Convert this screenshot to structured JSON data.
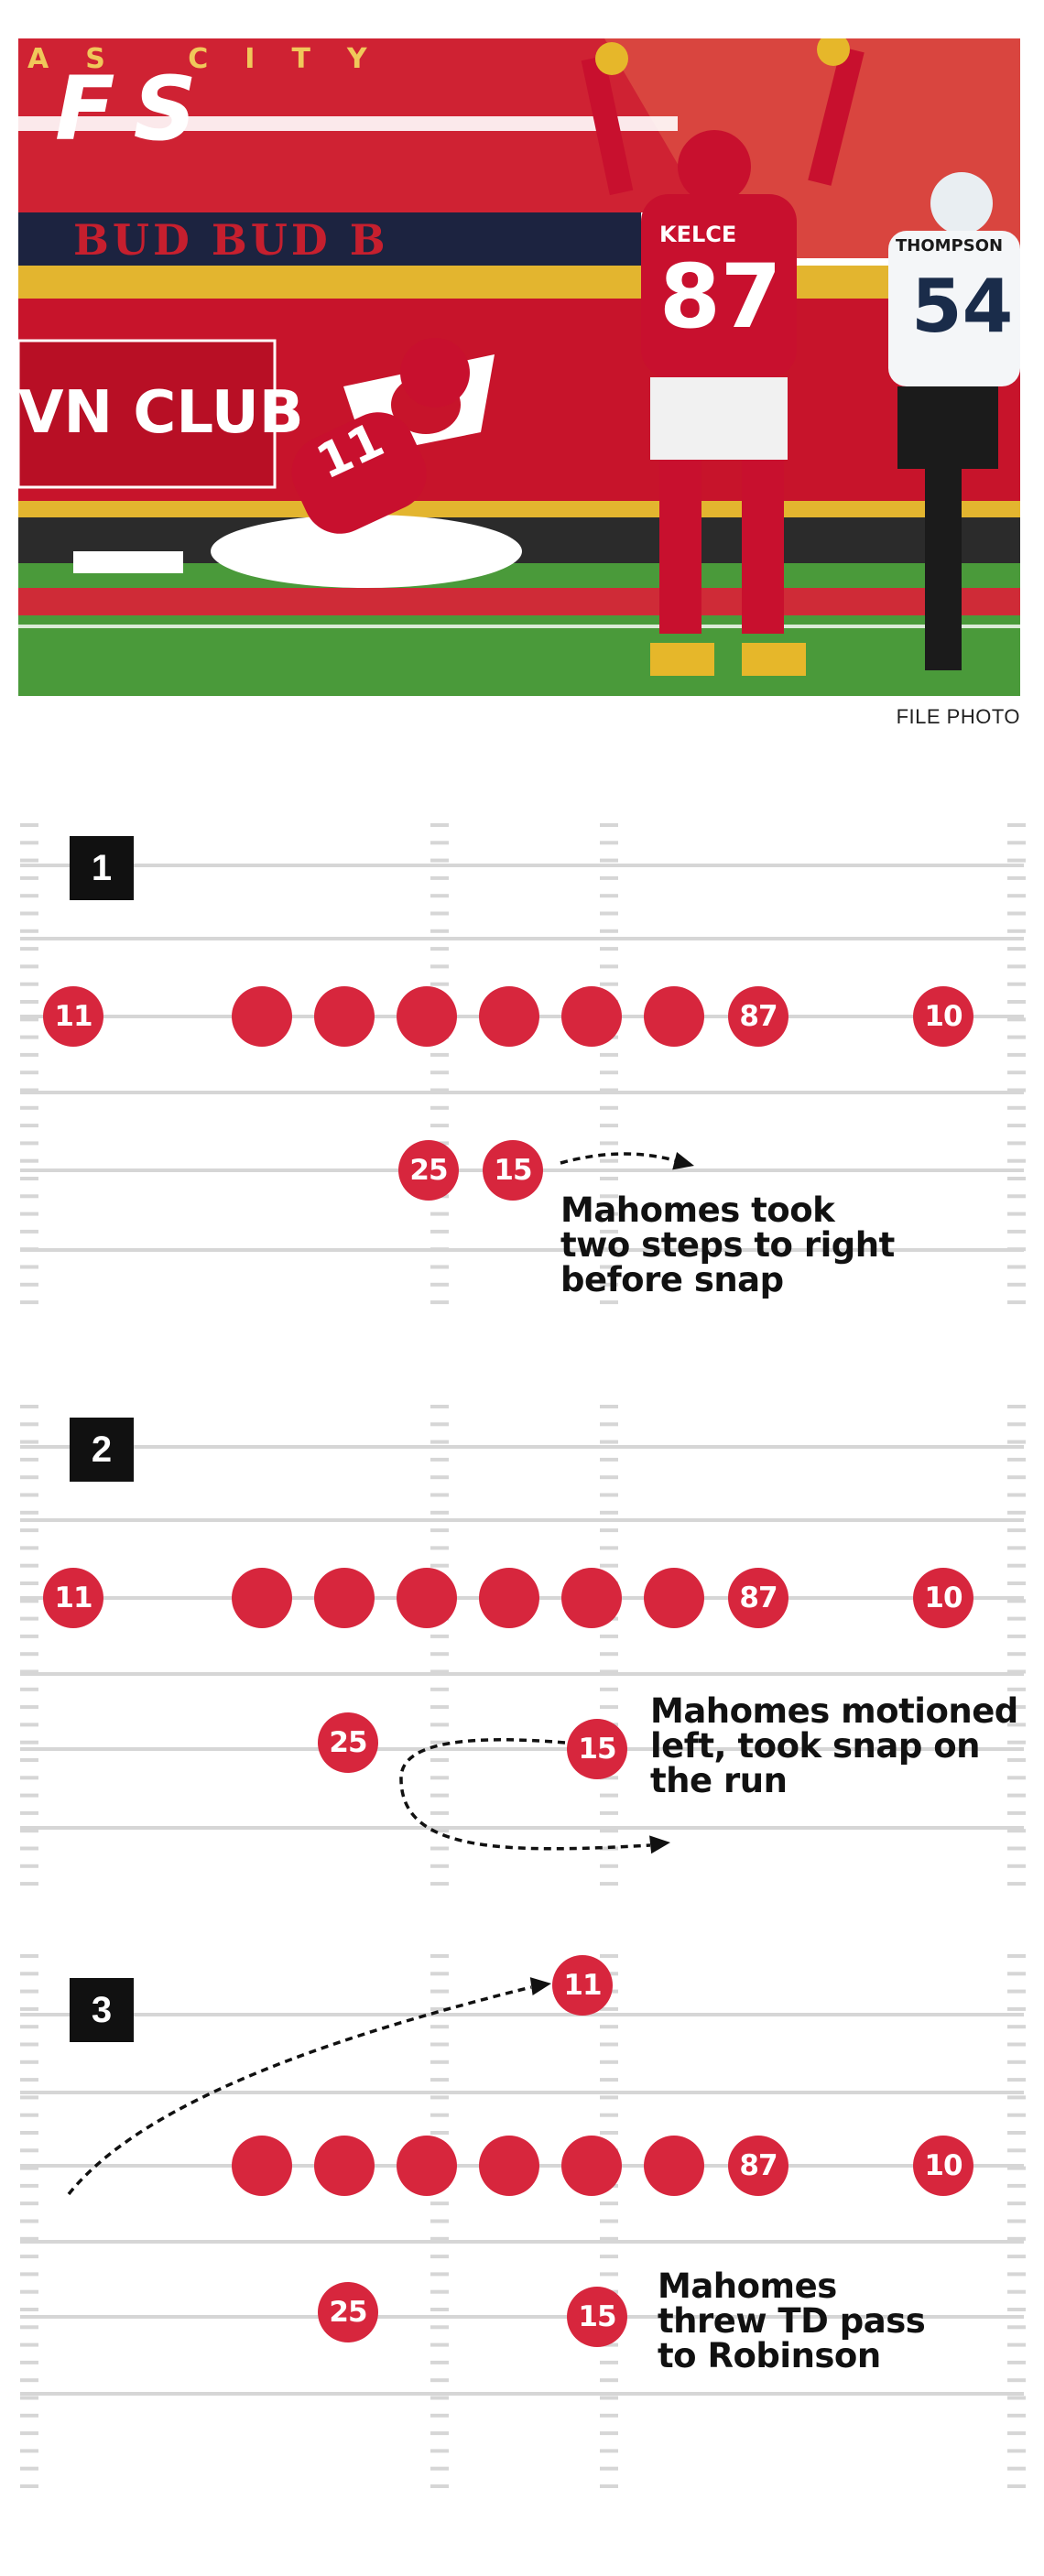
{
  "photo": {
    "credit": "FILE PHOTO",
    "banner_text": "FS",
    "stadium_text": "AS CITY",
    "wall_text": "BUD BUD B",
    "club_text": "VN CLUB",
    "jersey_kelce_name": "KELCE",
    "jersey_kelce_number": "87",
    "jersey_robinson_number": "11",
    "jersey_opponent_name": "THOMPSON",
    "jersey_opponent_number": "54"
  },
  "colors": {
    "accent_red": "#d7263d",
    "chiefs_red": "#c8102e",
    "yard_line": "#d6d6d6",
    "badge_black": "#111111"
  },
  "panels": [
    {
      "step": "1",
      "note_lines": [
        "Mahomes took",
        "two steps to right",
        "before snap"
      ],
      "players": [
        {
          "label": "11",
          "col": 0
        },
        {
          "label": "",
          "col": 1
        },
        {
          "label": "",
          "col": 2
        },
        {
          "label": "",
          "col": 3
        },
        {
          "label": "",
          "col": 4
        },
        {
          "label": "",
          "col": 5
        },
        {
          "label": "",
          "col": 6
        },
        {
          "label": "87",
          "col": 7
        },
        {
          "label": "10",
          "col": 8
        },
        {
          "label": "25",
          "col": "rb1"
        },
        {
          "label": "15",
          "col": "qb1"
        }
      ]
    },
    {
      "step": "2",
      "note_lines": [
        "Mahomes motioned",
        "left, took snap on",
        "the run"
      ],
      "players": [
        {
          "label": "11"
        },
        {
          "label": ""
        },
        {
          "label": ""
        },
        {
          "label": ""
        },
        {
          "label": ""
        },
        {
          "label": ""
        },
        {
          "label": ""
        },
        {
          "label": "87"
        },
        {
          "label": "10"
        },
        {
          "label": "25"
        },
        {
          "label": "15"
        }
      ]
    },
    {
      "step": "3",
      "note_lines": [
        "Mahomes",
        "threw TD pass",
        "to Robinson"
      ],
      "players": [
        {
          "label": "11"
        },
        {
          "label": ""
        },
        {
          "label": ""
        },
        {
          "label": ""
        },
        {
          "label": ""
        },
        {
          "label": ""
        },
        {
          "label": ""
        },
        {
          "label": "87"
        },
        {
          "label": "10"
        },
        {
          "label": "25"
        },
        {
          "label": "15"
        }
      ]
    }
  ]
}
